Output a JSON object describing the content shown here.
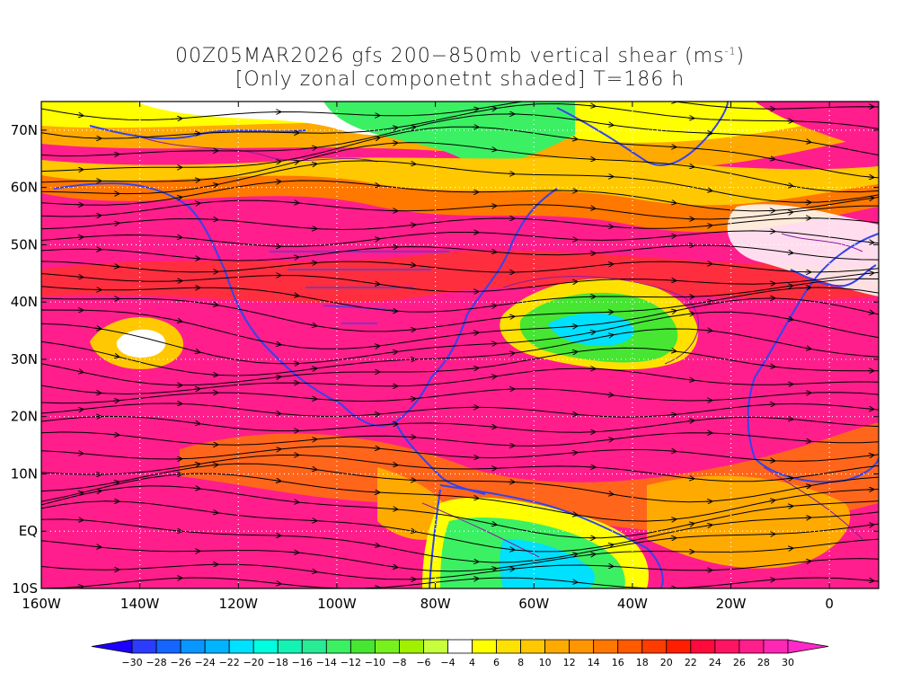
{
  "title": {
    "line1_pre": "00Z05MAR2026 gfs 200−850mb vertical shear (ms",
    "line1_sup": "-1",
    "line1_post": ")",
    "line2": "[Only zonal componetnt shaded] T=186 h"
  },
  "map": {
    "lat_labels": [
      "70N",
      "60N",
      "50N",
      "40N",
      "30N",
      "20N",
      "10N",
      "EQ",
      "10S"
    ],
    "lat_values": [
      70,
      60,
      50,
      40,
      30,
      20,
      10,
      0,
      -10
    ],
    "lon_labels": [
      "160W",
      "140W",
      "120W",
      "100W",
      "80W",
      "60W",
      "40W",
      "20W",
      "0"
    ],
    "lon_values": [
      -160,
      -140,
      -120,
      -100,
      -80,
      -60,
      -40,
      -20,
      0
    ],
    "lon_range": [
      -160,
      10
    ],
    "lat_range": [
      -10,
      75
    ],
    "grid": "dotted",
    "coastline_color": "#3344ee",
    "contour_color": "#8a1c9c",
    "streamline_color": "#000000"
  },
  "colorbar": {
    "labels": [
      "−30",
      "−28",
      "−26",
      "−24",
      "−22",
      "−20",
      "−18",
      "−16",
      "−14",
      "−12",
      "−10",
      "−8",
      "−6",
      "−4",
      "4",
      "6",
      "8",
      "10",
      "12",
      "14",
      "16",
      "18",
      "20",
      "22",
      "24",
      "26",
      "28",
      "30"
    ],
    "colors": [
      "#1d00ff",
      "#2b3cff",
      "#1466ff",
      "#0a96ff",
      "#00b4ff",
      "#00e0ff",
      "#00ffe0",
      "#14f2b4",
      "#28eb96",
      "#3cf064",
      "#46e632",
      "#78f01e",
      "#a0f000",
      "#c8ff3c",
      "#ffffff",
      "#ffff00",
      "#ffe100",
      "#ffc800",
      "#ffaa00",
      "#ff9600",
      "#ff7800",
      "#ff5a00",
      "#ff3c00",
      "#ff1e00",
      "#ff0a3c",
      "#ff1464",
      "#ff1e8c",
      "#ff28b4",
      "#ff28c8"
    ]
  }
}
